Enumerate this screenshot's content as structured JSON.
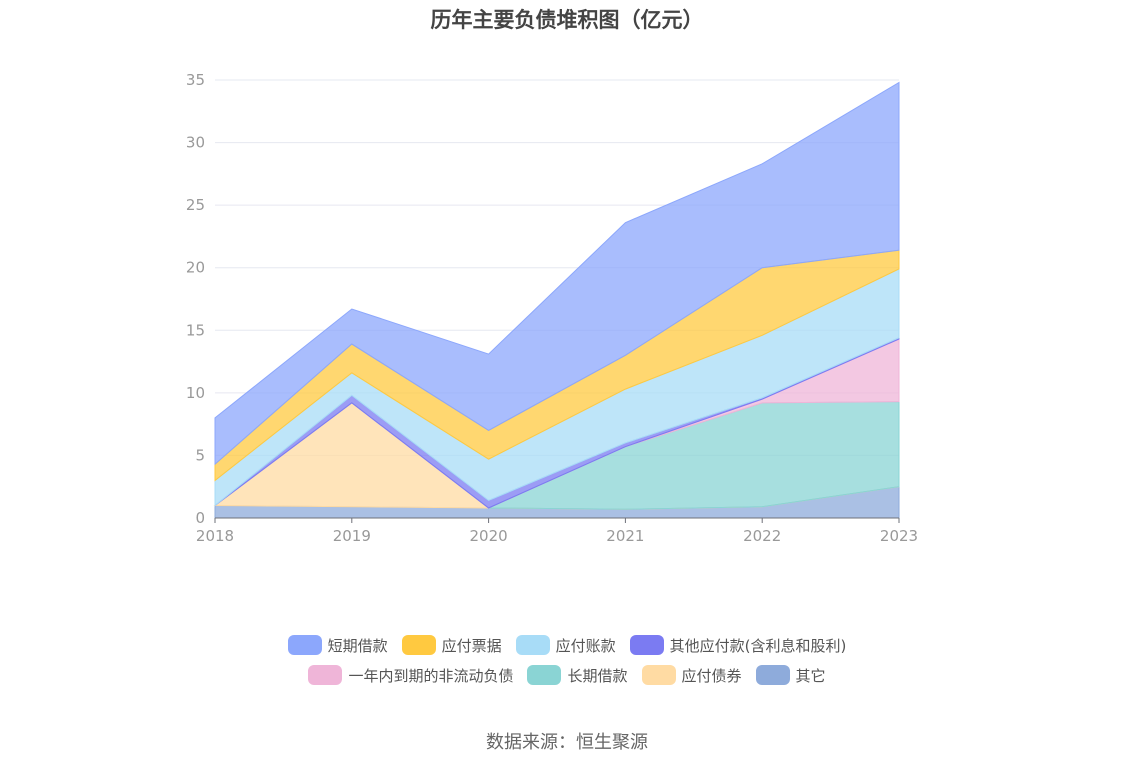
{
  "title": "历年主要负债堆积图（亿元）",
  "source": "数据来源：恒生聚源",
  "chart_data": {
    "type": "area",
    "stacked": true,
    "x": [
      "2018",
      "2019",
      "2020",
      "2021",
      "2022",
      "2023"
    ],
    "ylim": [
      0,
      35
    ],
    "yticks": [
      0,
      5,
      10,
      15,
      20,
      25,
      30,
      35
    ],
    "grid": true,
    "legend_position": "bottom",
    "series": [
      {
        "name": "其它",
        "color": "#8eabdb",
        "values": [
          1.0,
          0.9,
          0.8,
          0.7,
          0.9,
          2.5
        ]
      },
      {
        "name": "应付债券",
        "color": "#ffdba3",
        "values": [
          0.0,
          8.3,
          0.0,
          0.0,
          0.0,
          0.0
        ]
      },
      {
        "name": "长期借款",
        "color": "#8ad4d4",
        "values": [
          0.0,
          0.0,
          0.0,
          5.0,
          8.3,
          6.8
        ]
      },
      {
        "name": "一年内到期的非流动负债",
        "color": "#efb5d8",
        "values": [
          0.0,
          0.0,
          0.0,
          0.0,
          0.3,
          5.0
        ]
      },
      {
        "name": "其他应付款(含利息和股利)",
        "color": "#7b7bf2",
        "values": [
          0.0,
          0.6,
          0.6,
          0.3,
          0.1,
          0.1
        ]
      },
      {
        "name": "应付账款",
        "color": "#a8dcf7",
        "values": [
          2.0,
          1.8,
          3.3,
          4.3,
          5.0,
          5.5
        ]
      },
      {
        "name": "应付票据",
        "color": "#ffc940",
        "values": [
          1.3,
          2.3,
          2.3,
          2.7,
          5.4,
          1.5
        ]
      },
      {
        "name": "短期借款",
        "color": "#8ca7fc",
        "values": [
          3.7,
          2.8,
          6.1,
          10.6,
          8.3,
          13.4
        ]
      }
    ],
    "legend_order": [
      "短期借款",
      "应付票据",
      "应付账款",
      "其他应付款(含利息和股利)",
      "一年内到期的非流动负债",
      "长期借款",
      "应付债券",
      "其它"
    ]
  }
}
